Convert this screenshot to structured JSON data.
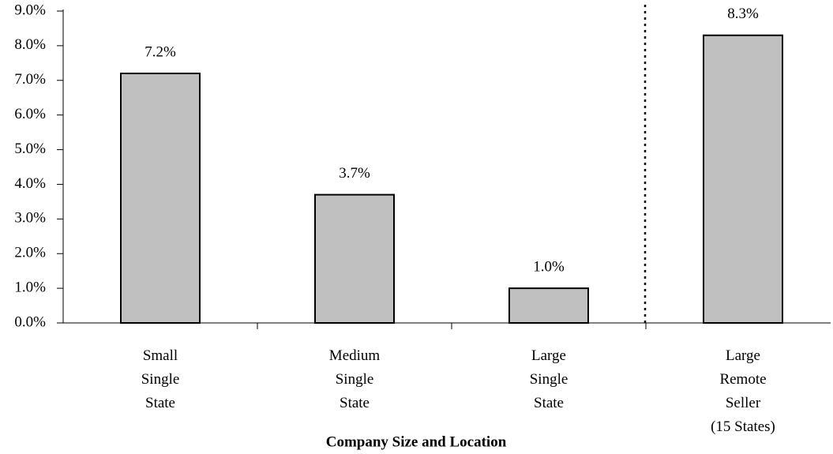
{
  "chart_data": {
    "type": "bar",
    "categories": [
      "Small\nSingle\nState",
      "Medium\nSingle\nState",
      "Large\nSingle\nState",
      "Large\nRemote\nSeller\n(15 States)"
    ],
    "values": [
      7.2,
      3.7,
      1.0,
      8.3
    ],
    "value_labels": [
      "7.2%",
      "3.7%",
      "1.0%",
      "8.3%"
    ],
    "color": "#c0c0c0",
    "xlabel": "Company Size and Location",
    "ylim": [
      0,
      9
    ],
    "yticks": [
      {
        "value": 0,
        "label": "0.0%"
      },
      {
        "value": 1,
        "label": "1.0%"
      },
      {
        "value": 2,
        "label": "2.0%"
      },
      {
        "value": 3,
        "label": "3.0%"
      },
      {
        "value": 4,
        "label": "4.0%"
      },
      {
        "value": 5,
        "label": "5.0%"
      },
      {
        "value": 6,
        "label": "6.0%"
      },
      {
        "value": 7,
        "label": "7.0%"
      },
      {
        "value": 8,
        "label": "8.0%"
      },
      {
        "value": 9,
        "label": "9.0%"
      }
    ],
    "grid": false
  }
}
